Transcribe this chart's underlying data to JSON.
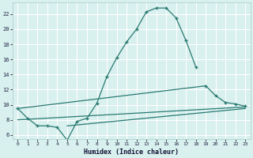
{
  "xlabel": "Humidex (Indice chaleur)",
  "background_color": "#d8f0ee",
  "grid_color": "#b0dcd8",
  "line_color": "#2a7a72",
  "xlim": [
    -0.5,
    23.5
  ],
  "ylim": [
    5.5,
    23.5
  ],
  "yticks": [
    6,
    8,
    10,
    12,
    14,
    16,
    18,
    20,
    22
  ],
  "xticks": [
    0,
    1,
    2,
    3,
    4,
    5,
    6,
    7,
    8,
    9,
    10,
    11,
    12,
    13,
    14,
    15,
    16,
    17,
    18,
    19,
    20,
    21,
    22,
    23
  ],
  "main_curve_x": [
    0,
    1,
    2,
    3,
    4,
    5,
    6,
    7,
    8,
    9,
    10,
    11,
    12,
    13,
    14,
    15,
    16,
    17,
    18
  ],
  "main_curve_y": [
    9.5,
    8.2,
    7.2,
    7.2,
    7.0,
    5.3,
    7.8,
    8.2,
    10.2,
    13.7,
    16.2,
    18.3,
    20.0,
    22.3,
    22.8,
    22.8,
    21.5,
    18.5,
    15.0
  ],
  "tail_curve_x": [
    19,
    20,
    21,
    22,
    23
  ],
  "tail_curve_y": [
    12.5,
    11.2,
    10.3,
    10.1,
    9.8
  ],
  "line1_x": [
    0,
    19
  ],
  "line1_y": [
    9.5,
    12.5
  ],
  "line2_x": [
    0,
    23
  ],
  "line2_y": [
    8.0,
    9.7
  ],
  "line3_x": [
    5,
    23
  ],
  "line3_y": [
    7.2,
    9.5
  ]
}
